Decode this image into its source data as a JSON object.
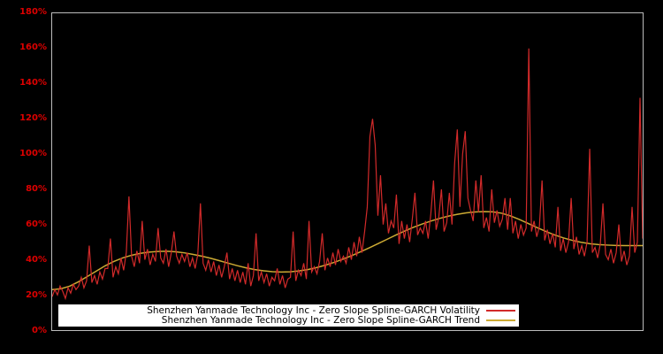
{
  "colors": {
    "background": "#000000",
    "frame_border": "#bdbdbd",
    "axis_label_color": "#dd0000",
    "volatility_color": "#d22a2a",
    "trend_color": "#ccaa33",
    "legend_background": "#ffffff",
    "legend_text_color": "#000000"
  },
  "chart_data": {
    "type": "line",
    "title": "",
    "xlabel": "",
    "ylabel": "",
    "x_axis": {
      "tick_labels_visible": false
    },
    "y_axis": {
      "unit": "%",
      "range": [
        0,
        180
      ],
      "tick_values": [
        0,
        20,
        40,
        60,
        80,
        100,
        120,
        140,
        160,
        180
      ],
      "tick_labels": [
        "0%",
        "20%",
        "40%",
        "60%",
        "80%",
        "100%",
        "120%",
        "140%",
        "160%",
        "180%"
      ]
    },
    "grid": "off",
    "legend_position": "bottom-center",
    "legend": [
      {
        "label": "Shenzhen Yanmade Technology Inc - Zero Slope Spline-GARCH Volatility",
        "color": "#d22a2a"
      },
      {
        "label": "Shenzhen Yanmade Technology Inc - Zero Slope Spline-GARCH Trend",
        "color": "#ccaa33"
      }
    ],
    "series": [
      {
        "name": "Shenzhen Yanmade Technology Inc - Zero Slope Spline-GARCH Volatility",
        "color": "#d22a2a",
        "unit": "percent",
        "values": [
          19,
          23,
          20,
          25,
          22,
          18,
          24,
          21,
          26,
          23,
          25,
          30,
          24,
          28,
          48,
          27,
          31,
          26,
          33,
          29,
          35,
          35,
          52,
          30,
          36,
          32,
          41,
          34,
          44,
          76,
          42,
          36,
          45,
          38,
          62,
          40,
          46,
          37,
          43,
          39,
          58,
          41,
          38,
          46,
          36,
          44,
          56,
          42,
          38,
          43,
          39,
          44,
          36,
          41,
          35,
          43,
          72,
          38,
          34,
          40,
          33,
          39,
          31,
          37,
          30,
          36,
          44,
          29,
          35,
          28,
          34,
          27,
          33,
          26,
          38,
          25,
          31,
          55,
          28,
          33,
          27,
          32,
          25,
          30,
          28,
          35,
          26,
          31,
          24,
          29,
          30,
          56,
          28,
          34,
          31,
          38,
          29,
          62,
          33,
          36,
          32,
          39,
          55,
          34,
          41,
          36,
          44,
          37,
          46,
          39,
          42,
          38,
          47,
          40,
          50,
          42,
          53,
          44,
          56,
          70,
          110,
          120,
          105,
          65,
          88,
          60,
          72,
          55,
          62,
          58,
          77,
          49,
          62,
          52,
          60,
          50,
          63,
          78,
          54,
          58,
          55,
          62,
          52,
          66,
          85,
          57,
          64,
          80,
          56,
          61,
          78,
          60,
          95,
          114,
          70,
          100,
          113,
          75,
          68,
          62,
          85,
          67,
          88,
          58,
          64,
          56,
          80,
          61,
          68,
          59,
          63,
          75,
          57,
          75,
          55,
          62,
          52,
          60,
          54,
          58,
          160,
          56,
          62,
          53,
          59,
          85,
          51,
          57,
          49,
          55,
          47,
          70,
          45,
          52,
          44,
          50,
          75,
          46,
          53,
          43,
          48,
          42,
          50,
          103,
          44,
          47,
          41,
          49,
          72,
          43,
          40,
          46,
          38,
          44,
          60,
          39,
          45,
          37,
          42,
          70,
          44,
          50,
          132,
          52
        ]
      },
      {
        "name": "Shenzhen Yanmade Technology Inc - Zero Slope Spline-GARCH Trend",
        "color": "#ccaa33",
        "unit": "percent",
        "values": [
          23,
          23.5,
          25,
          27.5,
          30.5,
          33.5,
          36.5,
          39,
          41,
          42.5,
          43.6,
          44.3,
          44.7,
          44.8,
          44.5,
          43.9,
          43,
          42,
          40.8,
          39.4,
          38,
          36.6,
          35.4,
          34.4,
          33.7,
          33.2,
          33,
          33.1,
          33.6,
          34.4,
          35.5,
          36.9,
          38.5,
          40.3,
          42.3,
          44.5,
          46.8,
          49.2,
          51.6,
          54,
          56.3,
          58.4,
          60.3,
          62,
          63.5,
          64.8,
          65.8,
          66.6,
          67.1,
          67.3,
          67.2,
          66.4,
          64.9,
          62.9,
          60.6,
          58.3,
          56.1,
          54.1,
          52.4,
          51,
          49.9,
          49.1,
          48.6,
          48.3,
          48.1,
          48,
          48,
          48
        ]
      }
    ]
  }
}
